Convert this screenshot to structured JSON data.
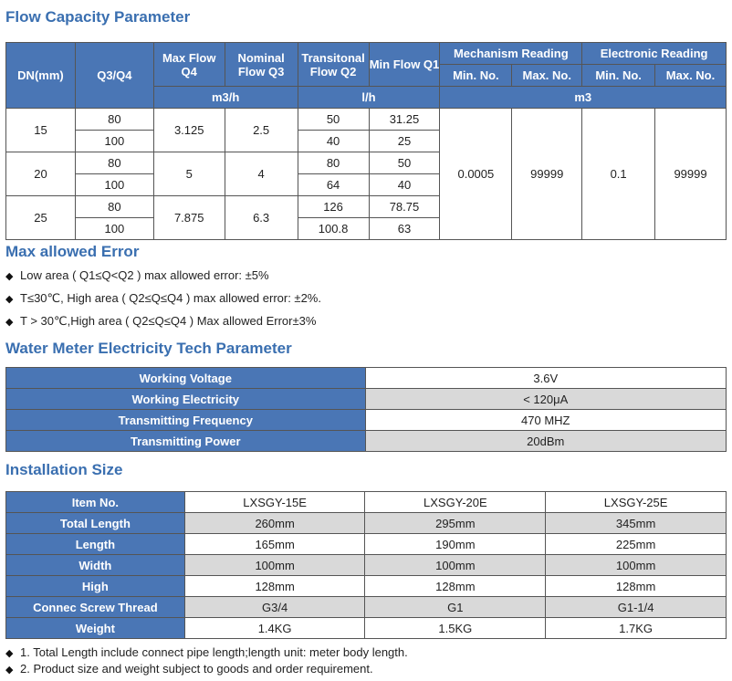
{
  "flow": {
    "title": "Flow Capacity Parameter",
    "headers": {
      "dn": "DN(mm)",
      "q3q4": "Q3/Q4",
      "max_flow": "Max Flow Q4",
      "nominal": "Nominal Flow Q3",
      "transitional": "Transitonal Flow Q2",
      "min_flow": "Min Flow Q1",
      "mechanism": "Mechanism Reading",
      "electronic": "Electronic Reading",
      "min_no": "Min. No.",
      "max_no": "Max. No.",
      "unit_m3h": "m3/h",
      "unit_lh": "l/h",
      "unit_m3": "m3"
    },
    "rows": [
      {
        "dn": "15",
        "max_flow": "3.125",
        "nominal": "2.5",
        "sub": [
          {
            "q": "80",
            "q2": "50",
            "q1": "31.25"
          },
          {
            "q": "100",
            "q2": "40",
            "q1": "25"
          }
        ]
      },
      {
        "dn": "20",
        "max_flow": "5",
        "nominal": "4",
        "sub": [
          {
            "q": "80",
            "q2": "80",
            "q1": "50"
          },
          {
            "q": "100",
            "q2": "64",
            "q1": "40"
          }
        ]
      },
      {
        "dn": "25",
        "max_flow": "7.875",
        "nominal": "6.3",
        "sub": [
          {
            "q": "80",
            "q2": "126",
            "q1": "78.75"
          },
          {
            "q": "100",
            "q2": "100.8",
            "q1": "63"
          }
        ]
      }
    ],
    "readings": {
      "mech_min": "0.0005",
      "mech_max": "99999",
      "elec_min": "0.1",
      "elec_max": "99999"
    }
  },
  "error": {
    "title": "Max allowed Error",
    "items": [
      "Low area ( Q1≤Q<Q2 ) max allowed error: ±5%",
      "T≤30℃, High area ( Q2≤Q≤Q4 ) max allowed error: ±2%.",
      "T > 30℃,High area  ( Q2≤Q≤Q4 ) Max allowed Error±3%"
    ]
  },
  "electric": {
    "title": "Water Meter Electricity Tech Parameter",
    "rows": [
      {
        "label": "Working Voltage",
        "value": "3.6V"
      },
      {
        "label": "Working Electricity",
        "value": "< 120μA"
      },
      {
        "label": "Transmitting Frequency",
        "value": "470 MHZ"
      },
      {
        "label": "Transmitting Power",
        "value": "20dBm"
      }
    ]
  },
  "size": {
    "title": "Installation Size",
    "header": {
      "label": "Item No.",
      "c1": "LXSGY-15E",
      "c2": "LXSGY-20E",
      "c3": "LXSGY-25E"
    },
    "rows": [
      {
        "label": "Total Length",
        "c1": "260mm",
        "c2": "295mm",
        "c3": "345mm"
      },
      {
        "label": "Length",
        "c1": "165mm",
        "c2": "190mm",
        "c3": "225mm"
      },
      {
        "label": "Width",
        "c1": "100mm",
        "c2": "100mm",
        "c3": "100mm"
      },
      {
        "label": "High",
        "c1": "128mm",
        "c2": "128mm",
        "c3": "128mm"
      },
      {
        "label": "Connec Screw Thread",
        "c1": "G3/4",
        "c2": "G1",
        "c3": "G1-1/4"
      },
      {
        "label": "Weight",
        "c1": "1.4KG",
        "c2": "1.5KG",
        "c3": "1.7KG"
      }
    ]
  },
  "notes": {
    "items": [
      "1. Total Length include connect pipe length;length unit: meter body length.",
      "2. Product size and weight subject to goods and order requirement."
    ]
  }
}
